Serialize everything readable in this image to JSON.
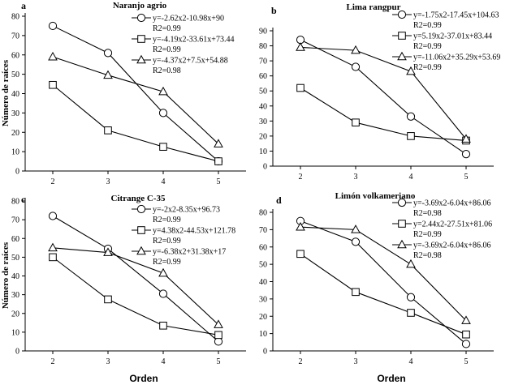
{
  "chart_data": [
    {
      "type": "line",
      "panel": "a",
      "title": "Naranjo agrio",
      "xlabel": "",
      "ylabel": "Número de raíces",
      "categories": [
        "2",
        "3",
        "4",
        "5"
      ],
      "ylim": [
        0,
        80
      ],
      "yticks": [
        0,
        10,
        20,
        30,
        40,
        50,
        60,
        70,
        80
      ],
      "legend_position": "top-right",
      "series": [
        {
          "name": "y=-2.62x2-10.98x+90",
          "r2": "R2=0.99",
          "marker": "circle",
          "values": [
            75,
            61,
            30,
            5
          ]
        },
        {
          "name": "y=-4.19x2-33.61x+73.44",
          "r2": "R2=0.99",
          "marker": "square",
          "values": [
            44.5,
            21,
            12.5,
            5
          ]
        },
        {
          "name": "y=-4.37x2+7.5x+54.88",
          "r2": "R2=0.98",
          "marker": "triangle",
          "values": [
            59,
            49.5,
            41,
            14
          ]
        }
      ]
    },
    {
      "type": "line",
      "panel": "b",
      "title": "Lima rangpur",
      "xlabel": "",
      "ylabel": "",
      "categories": [
        "2",
        "3",
        "4",
        "5"
      ],
      "ylim": [
        0,
        90
      ],
      "yticks": [
        0,
        10,
        20,
        30,
        40,
        50,
        60,
        70,
        80,
        90
      ],
      "legend_position": "top-right",
      "series": [
        {
          "name": "y=-1.75x2-17.45x+104.63",
          "r2": "R2=0.99",
          "marker": "circle",
          "values": [
            84,
            66,
            33,
            8
          ]
        },
        {
          "name": "y=5.19x2-37.01x+83.44",
          "r2": "R2=0.99",
          "marker": "square",
          "values": [
            52,
            29,
            20,
            17
          ]
        },
        {
          "name": "y=-11.06x2+35.29x+53.69",
          "r2": "R2=0.99",
          "marker": "triangle",
          "values": [
            79,
            77,
            63,
            18
          ]
        }
      ]
    },
    {
      "type": "line",
      "panel": "c",
      "title": "Citrange C-35",
      "xlabel": "Orden",
      "ylabel": "Número de raíces",
      "categories": [
        "2",
        "3",
        "4",
        "5"
      ],
      "ylim": [
        0,
        80
      ],
      "yticks": [
        0,
        10,
        20,
        30,
        40,
        50,
        60,
        70,
        80
      ],
      "legend_position": "top-right",
      "series": [
        {
          "name": "y=-2x2-8.35x+96.73",
          "r2": "R2=0.99",
          "marker": "circle",
          "values": [
            72,
            54.5,
            30.5,
            5
          ]
        },
        {
          "name": "y=4.38x2-44.53x+121.78",
          "r2": "R2=0.99",
          "marker": "square",
          "values": [
            50,
            27.5,
            13.5,
            8.5
          ]
        },
        {
          "name": "y=-6.38x2+31.38x+17",
          "r2": "R2=0.99",
          "marker": "triangle",
          "values": [
            55,
            52.5,
            41.5,
            14
          ]
        }
      ]
    },
    {
      "type": "line",
      "panel": "d",
      "title": "Limón volkameriano",
      "xlabel": "Orden",
      "ylabel": "",
      "categories": [
        "2",
        "3",
        "4",
        "5"
      ],
      "ylim": [
        0,
        80
      ],
      "yticks": [
        0,
        10,
        20,
        30,
        40,
        50,
        60,
        70,
        80
      ],
      "legend_position": "top-right",
      "series": [
        {
          "name": "y=-3.69x2-6.04x+86.06",
          "r2": "R2=0.98",
          "marker": "circle",
          "values": [
            75,
            63,
            31,
            4
          ]
        },
        {
          "name": "y=2.44x2-27.51x+81.06",
          "r2": "R2=0.99",
          "marker": "square",
          "values": [
            56,
            34,
            22,
            9.5
          ]
        },
        {
          "name": "y=-3.69x2-6.04x+86.06",
          "r2": "R2=0.98",
          "marker": "triangle",
          "values": [
            71.5,
            70,
            50,
            17.5
          ]
        }
      ]
    }
  ]
}
